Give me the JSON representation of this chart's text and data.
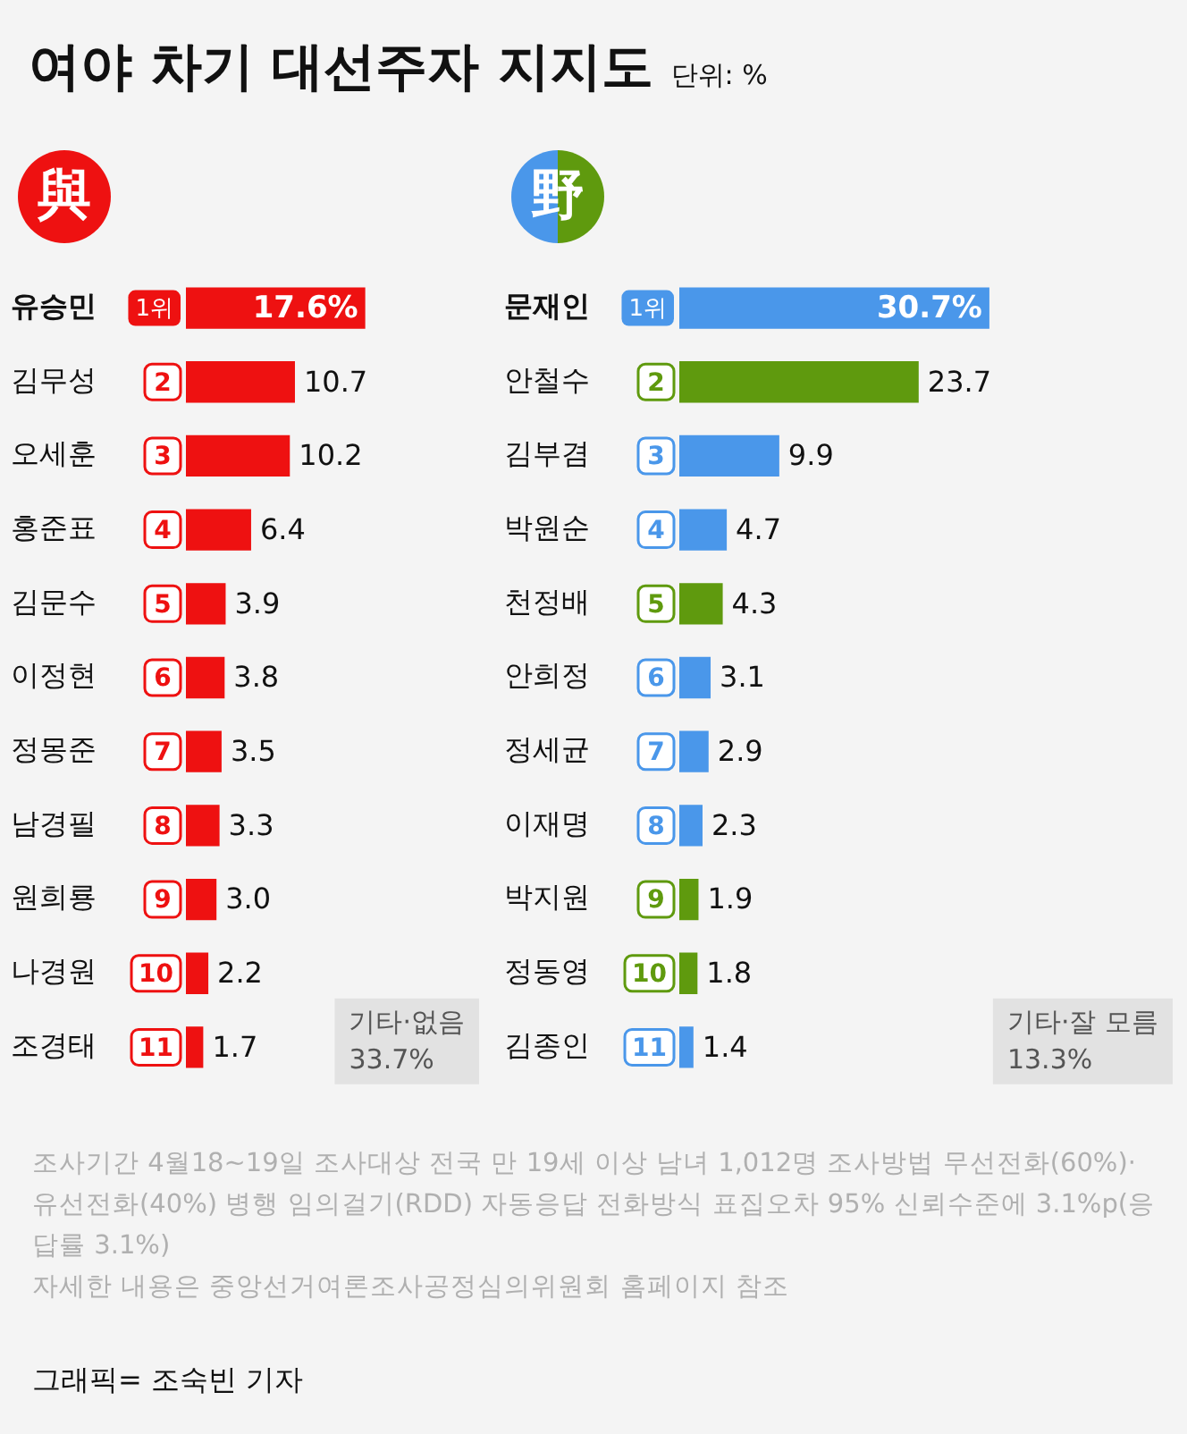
{
  "chart_data": [
    {
      "type": "bar",
      "orientation": "horizontal",
      "title": "여야 차기 대선주자 지지도",
      "subtitle": "與",
      "categories": [
        "유승민",
        "김무성",
        "오세훈",
        "홍준표",
        "김문수",
        "이정현",
        "정몽준",
        "남경필",
        "원희룡",
        "나경원",
        "조경태"
      ],
      "values": [
        17.6,
        10.7,
        10.2,
        6.4,
        3.9,
        3.8,
        3.5,
        3.3,
        3.0,
        2.2,
        1.7
      ],
      "value_labels": [
        "17.6%",
        "10.7",
        "10.2",
        "6.4",
        "3.9",
        "3.8",
        "3.5",
        "3.3",
        "3.0",
        "2.2",
        "1.7"
      ],
      "colors": [
        "#ee1111",
        "#ee1111",
        "#ee1111",
        "#ee1111",
        "#ee1111",
        "#ee1111",
        "#ee1111",
        "#ee1111",
        "#ee1111",
        "#ee1111",
        "#ee1111"
      ],
      "annotations": [
        "기타·없음 33.7%",
        "단위: %",
        {
          "text": "1위",
          "y": "유승민"
        },
        {
          "text": "2",
          "y": "김무성"
        },
        {
          "text": "3",
          "y": "오세훈"
        },
        {
          "text": "4",
          "y": "홍준표"
        },
        {
          "text": "5",
          "y": "김문수"
        },
        {
          "text": "6",
          "y": "이정현"
        },
        {
          "text": "7",
          "y": "정몽준"
        },
        {
          "text": "8",
          "y": "남경필"
        },
        {
          "text": "9",
          "y": "원희룡"
        },
        {
          "text": "10",
          "y": "나경원"
        },
        {
          "text": "11",
          "y": "조경태"
        }
      ]
    },
    {
      "type": "bar",
      "orientation": "horizontal",
      "subtitle": "野",
      "categories": [
        "문재인",
        "안철수",
        "김부겸",
        "박원순",
        "천정배",
        "안희정",
        "정세균",
        "이재명",
        "박지원",
        "정동영",
        "김종인"
      ],
      "values": [
        30.7,
        23.7,
        9.9,
        4.7,
        4.3,
        3.1,
        2.9,
        2.3,
        1.9,
        1.8,
        1.4
      ],
      "value_labels": [
        "30.7%",
        "23.7",
        "9.9",
        "4.7",
        "4.3",
        "3.1",
        "2.9",
        "2.3",
        "1.9",
        "1.8",
        "1.4"
      ],
      "colors": [
        "#4a97ea",
        "#5f9a0e",
        "#4a97ea",
        "#4a97ea",
        "#5f9a0e",
        "#4a97ea",
        "#4a97ea",
        "#4a97ea",
        "#5f9a0e",
        "#5f9a0e",
        "#4a97ea"
      ],
      "annotations": [
        "기타·잘 모름 13.3%",
        "조사기간 4월18~19일 조사대상 전국 만 19세 이상 남녀 1,012명 조사방법 무선전화(60%)·유선전화(40%) 병행 임의걸기(RDD) 자동응답 전화방식 표집오차 95% 신뢰수준에 3.1%p(응답률 3.1%)",
        "자세한 내용은 중앙선거여론조사공정심의위원회 홈페이지 참조",
        "그래픽= 조숙빈 기자",
        {
          "text": "1위",
          "y": "문재인"
        },
        {
          "text": "2",
          "y": "안철수"
        },
        {
          "text": "3",
          "y": "김부겸"
        },
        {
          "text": "4",
          "y": "박원순"
        },
        {
          "text": "5",
          "y": "천정배"
        },
        {
          "text": "6",
          "y": "안희정"
        },
        {
          "text": "7",
          "y": "정세균"
        },
        {
          "text": "8",
          "y": "이재명"
        },
        {
          "text": "9",
          "y": "박지원"
        },
        {
          "text": "10",
          "y": "정동영"
        },
        {
          "text": "11",
          "y": "김종인"
        }
      ]
    }
  ]
}
